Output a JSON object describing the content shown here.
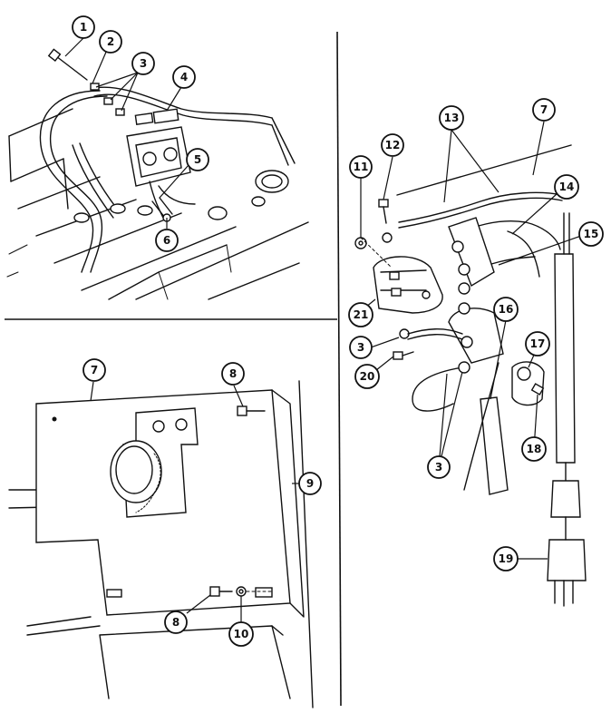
{
  "callouts": {
    "c1": "1",
    "c2": "2",
    "c3a": "3",
    "c4": "4",
    "c5": "5",
    "c6": "6",
    "c7a": "7",
    "c8a": "8",
    "c9": "9",
    "c8b": "8",
    "c10": "10",
    "c7b": "7",
    "c11": "11",
    "c12": "12",
    "c13": "13",
    "c14": "14",
    "c15": "15",
    "c21": "21",
    "c3b": "3",
    "c20": "20",
    "c16": "16",
    "c17": "17",
    "c18": "18",
    "c3c": "3",
    "c19": "19"
  },
  "colors": {
    "line": "#111111",
    "background": "#ffffff"
  }
}
